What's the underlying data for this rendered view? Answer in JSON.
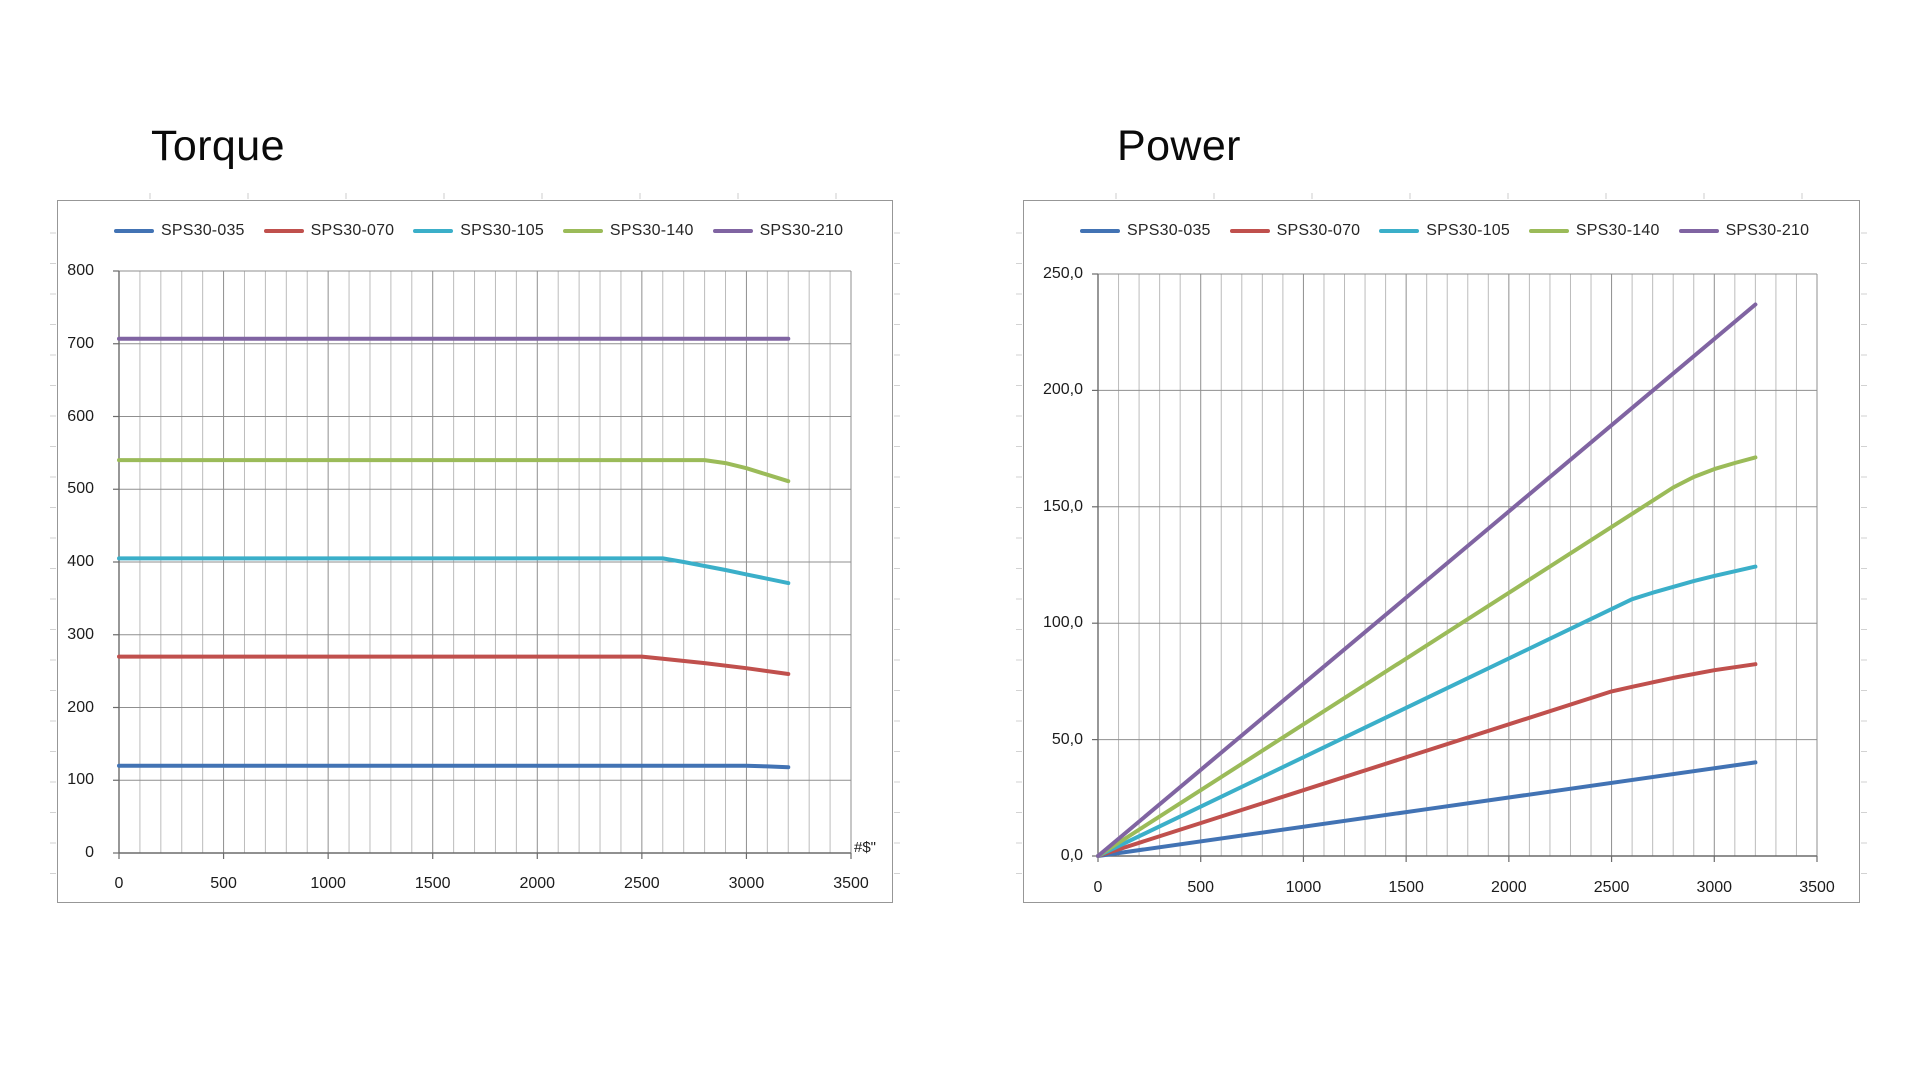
{
  "chart_data": [
    {
      "type": "line",
      "title": "Torque",
      "legend_position": "top",
      "grid": true,
      "axis_annotation": "#$\"",
      "x_axis": {
        "min": 0,
        "max": 3500,
        "major_step": 500,
        "minor_step": 100,
        "tick_labels": [
          "0",
          "500",
          "1000",
          "1500",
          "2000",
          "2500",
          "3000",
          "3500"
        ]
      },
      "y_axis": {
        "min": 0,
        "max": 800,
        "major_step": 100,
        "tick_labels": [
          "0",
          "100",
          "200",
          "300",
          "400",
          "500",
          "600",
          "700",
          "800"
        ]
      },
      "series": [
        {
          "name": "SPS30-035",
          "color": "#4273B4",
          "points": [
            [
              0,
              120
            ],
            [
              2900,
              120
            ],
            [
              3000,
              120
            ],
            [
              3100,
              119
            ],
            [
              3200,
              118
            ]
          ]
        },
        {
          "name": "SPS30-070",
          "color": "#C0504D",
          "points": [
            [
              0,
              270
            ],
            [
              2500,
              270
            ],
            [
              2600,
              267
            ],
            [
              2800,
              261
            ],
            [
              3000,
              254
            ],
            [
              3200,
              246
            ]
          ]
        },
        {
          "name": "SPS30-105",
          "color": "#3BAFC9",
          "points": [
            [
              0,
              405
            ],
            [
              2600,
              405
            ],
            [
              2700,
              400
            ],
            [
              2900,
              389
            ],
            [
              3000,
              383
            ],
            [
              3200,
              371
            ]
          ]
        },
        {
          "name": "SPS30-140",
          "color": "#9BBB59",
          "points": [
            [
              0,
              540
            ],
            [
              2800,
              540
            ],
            [
              2900,
              536
            ],
            [
              3000,
              529
            ],
            [
              3100,
              520
            ],
            [
              3200,
              511
            ]
          ]
        },
        {
          "name": "SPS30-210",
          "color": "#8064A2",
          "points": [
            [
              0,
              707
            ],
            [
              3200,
              707
            ]
          ]
        }
      ]
    },
    {
      "type": "line",
      "title": "Power",
      "legend_position": "top",
      "grid": true,
      "x_axis": {
        "min": 0,
        "max": 3500,
        "major_step": 500,
        "minor_step": 100,
        "tick_labels": [
          "0",
          "500",
          "1000",
          "1500",
          "2000",
          "2500",
          "3000",
          "3500"
        ]
      },
      "y_axis": {
        "min": 0,
        "max": 250,
        "major_step": 50,
        "tick_labels": [
          "0,0",
          "50,0",
          "100,0",
          "150,0",
          "200,0",
          "250,0"
        ]
      },
      "series": [
        {
          "name": "SPS30-035",
          "color": "#4273B4",
          "points": [
            [
              0,
              0
            ],
            [
              1600,
              20.1
            ],
            [
              3200,
              40.2
            ]
          ]
        },
        {
          "name": "SPS30-070",
          "color": "#C0504D",
          "points": [
            [
              0,
              0
            ],
            [
              2500,
              70.7
            ],
            [
              2600,
              72.7
            ],
            [
              2800,
              76.5
            ],
            [
              3000,
              79.8
            ],
            [
              3200,
              82.4
            ]
          ]
        },
        {
          "name": "SPS30-105",
          "color": "#3BAFC9",
          "points": [
            [
              0,
              0
            ],
            [
              2600,
              110.3
            ],
            [
              2700,
              113.1
            ],
            [
              2900,
              118.1
            ],
            [
              3000,
              120.3
            ],
            [
              3200,
              124.3
            ]
          ]
        },
        {
          "name": "SPS30-140",
          "color": "#9BBB59",
          "points": [
            [
              0,
              0
            ],
            [
              2800,
              158.3
            ],
            [
              2900,
              162.8
            ],
            [
              3000,
              166.2
            ],
            [
              3100,
              168.8
            ],
            [
              3200,
              171.2
            ]
          ]
        },
        {
          "name": "SPS30-210",
          "color": "#8064A2",
          "points": [
            [
              0,
              0
            ],
            [
              1600,
              118.4
            ],
            [
              3200,
              236.9
            ]
          ]
        }
      ]
    }
  ]
}
